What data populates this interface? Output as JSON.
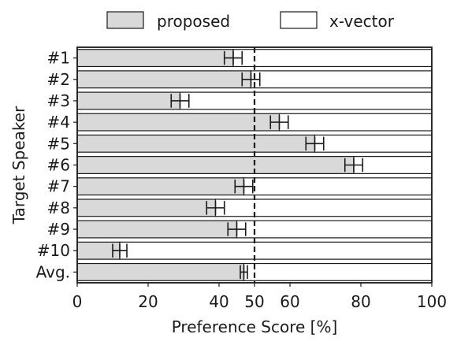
{
  "chart_data": {
    "type": "bar",
    "orientation": "horizontal",
    "stacked": true,
    "categories": [
      "#1",
      "#2",
      "#3",
      "#4",
      "#5",
      "#6",
      "#7",
      "#8",
      "#9",
      "#10",
      "Avg."
    ],
    "series": [
      {
        "name": "proposed",
        "color": "#d9d9d9",
        "values": [
          44,
          49,
          29,
          57,
          67,
          78,
          47,
          39,
          45,
          12,
          47
        ]
      },
      {
        "name": "x-vector",
        "color": "#ffffff",
        "values": [
          56,
          51,
          71,
          43,
          33,
          22,
          53,
          61,
          55,
          88,
          53
        ]
      }
    ],
    "error_bars": [
      2.5,
      2.5,
      2.5,
      2.5,
      2.5,
      2.5,
      2.5,
      2.5,
      2.5,
      2.0,
      1.0
    ],
    "xlabel": "Preference Score [%]",
    "ylabel": "Target Speaker",
    "xlim": [
      0,
      100
    ],
    "xticks": [
      "0",
      "20",
      "40",
      "50",
      "60",
      "80",
      "100"
    ],
    "xtick_values": [
      0,
      20,
      40,
      50,
      60,
      80,
      100
    ],
    "reference_line": {
      "x": 50,
      "style": "dashed"
    },
    "legend": {
      "placement": "top",
      "entries": [
        "proposed",
        "x-vector"
      ]
    },
    "grid": false
  }
}
